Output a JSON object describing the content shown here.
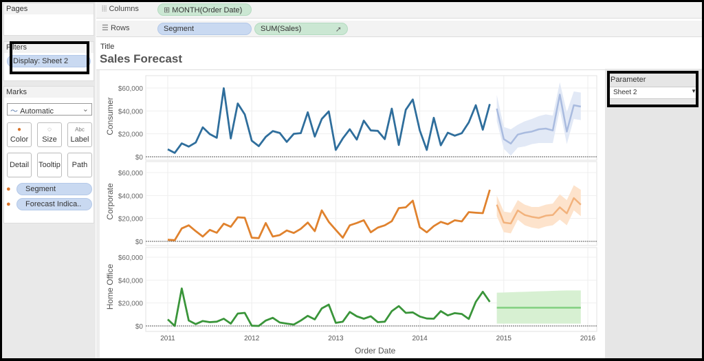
{
  "left_panel": {
    "pages_label": "Pages",
    "filters_label": "Filters",
    "filter_pill": "Display: Sheet 2",
    "marks_label": "Marks",
    "mark_type": "Automatic",
    "mark_buttons": [
      {
        "label": "Color",
        "icon": "color-icon",
        "glyph": "●"
      },
      {
        "label": "Size",
        "icon": "size-icon",
        "glyph": "◌"
      },
      {
        "label": "Label",
        "icon": "label-icon",
        "glyph": "Abc"
      },
      {
        "label": "Detail",
        "icon": "detail-icon",
        "glyph": ""
      },
      {
        "label": "Tooltip",
        "icon": "tooltip-icon",
        "glyph": ""
      },
      {
        "label": "Path",
        "icon": "path-icon",
        "glyph": ""
      }
    ],
    "mark_pills": [
      "Segment",
      "Forecast Indica.."
    ]
  },
  "shelves": {
    "columns_label": "Columns",
    "columns_pill": "MONTH(Order Date)",
    "rows_label": "Rows",
    "rows_pills": [
      "Segment",
      "SUM(Sales)"
    ]
  },
  "title": {
    "label": "Title",
    "text": "Sales Forecast"
  },
  "parameter": {
    "label": "Parameter",
    "value": "Sheet 2"
  },
  "chart_data": {
    "type": "line",
    "xlabel": "Order Date",
    "x_ticks": [
      "2011",
      "2012",
      "2013",
      "2014",
      "2015",
      "2016"
    ],
    "y_ticks": [
      "$0",
      "$20,000",
      "$40,000",
      "$60,000"
    ],
    "ylim": [
      0,
      65000
    ],
    "grid": true,
    "x": [
      "2011-01",
      "2011-02",
      "2011-03",
      "2011-04",
      "2011-05",
      "2011-06",
      "2011-07",
      "2011-08",
      "2011-09",
      "2011-10",
      "2011-11",
      "2011-12",
      "2012-01",
      "2012-02",
      "2012-03",
      "2012-04",
      "2012-05",
      "2012-06",
      "2012-07",
      "2012-08",
      "2012-09",
      "2012-10",
      "2012-11",
      "2012-12",
      "2013-01",
      "2013-02",
      "2013-03",
      "2013-04",
      "2013-05",
      "2013-06",
      "2013-07",
      "2013-08",
      "2013-09",
      "2013-10",
      "2013-11",
      "2013-12",
      "2014-01",
      "2014-02",
      "2014-03",
      "2014-04",
      "2014-05",
      "2014-06",
      "2014-07",
      "2014-08",
      "2014-09",
      "2014-10",
      "2014-11"
    ],
    "forecast_x": [
      "2014-12",
      "2015-01",
      "2015-02",
      "2015-03",
      "2015-04",
      "2015-05",
      "2015-06",
      "2015-07",
      "2015-08",
      "2015-09",
      "2015-10",
      "2015-11",
      "2015-12"
    ],
    "panels": [
      {
        "name": "Consumer",
        "color": "#2f6e9c",
        "forecast_color": "#a9bbdf",
        "band_color": "#e2e9f6",
        "actual": [
          6500,
          3400,
          11700,
          8900,
          12500,
          25700,
          19800,
          16600,
          59800,
          16000,
          46500,
          37000,
          14000,
          9300,
          17400,
          22400,
          20800,
          13000,
          20000,
          20600,
          38800,
          17600,
          33000,
          39600,
          6000,
          16000,
          24000,
          15000,
          31500,
          23000,
          22600,
          15400,
          42000,
          10300,
          41000,
          50000,
          23000,
          6000,
          34000,
          10000,
          21000,
          18400,
          20600,
          30000,
          45000,
          23600,
          46000
        ],
        "forecast": [
          42000,
          15400,
          11500,
          19400,
          21000,
          22000,
          24000,
          24600,
          23000,
          54300,
          22000,
          45000,
          43800
        ],
        "upper": [
          54000,
          26000,
          24000,
          28000,
          31000,
          33000,
          35500,
          37000,
          36000,
          65000,
          39000,
          57000,
          56000
        ],
        "lower": [
          31000,
          7000,
          1000,
          8000,
          9000,
          11000,
          12000,
          12000,
          12000,
          41000,
          11000,
          33000,
          32000
        ]
      },
      {
        "name": "Corporate",
        "color": "#e0822e",
        "forecast_color": "#f2b27c",
        "band_color": "#fde3cc",
        "actual": [
          1400,
          1000,
          11300,
          14000,
          8900,
          4200,
          10000,
          7500,
          15400,
          12700,
          21000,
          20600,
          3200,
          2800,
          16000,
          4200,
          5500,
          9500,
          7300,
          10900,
          16400,
          8900,
          27000,
          17000,
          10000,
          3200,
          14000,
          16000,
          18400,
          7900,
          12000,
          14000,
          17600,
          29000,
          29700,
          35500,
          12300,
          7900,
          13300,
          17000,
          15000,
          18400,
          17400,
          25500,
          25000,
          24600,
          45000
        ],
        "forecast": [
          32000,
          16400,
          15600,
          27000,
          23000,
          21400,
          20400,
          22400,
          23000,
          29700,
          24400,
          37800,
          32000
        ],
        "upper": [
          40000,
          26000,
          25000,
          36000,
          32000,
          30000,
          30000,
          32000,
          33000,
          41000,
          36000,
          49000,
          45000
        ],
        "lower": [
          22000,
          8000,
          7000,
          19000,
          14000,
          12000,
          11000,
          13000,
          14000,
          19000,
          14000,
          27000,
          22000
        ]
      },
      {
        "name": "Home Office",
        "color": "#3a953a",
        "forecast_color": "#80cf7f",
        "band_color": "#d7f0d2",
        "actual": [
          5700,
          0,
          32700,
          4700,
          1600,
          4300,
          3300,
          3700,
          6300,
          2000,
          10800,
          11400,
          200,
          0,
          4700,
          7100,
          3000,
          2000,
          1200,
          4700,
          8800,
          5700,
          15300,
          18600,
          2700,
          3700,
          12200,
          8400,
          6300,
          8400,
          3300,
          3700,
          12900,
          17300,
          11400,
          11800,
          8200,
          6500,
          6300,
          12900,
          9200,
          11200,
          10400,
          6100,
          21000,
          29800,
          21000
        ],
        "forecast": [
          15900,
          15900,
          15900,
          15900,
          15900,
          15900,
          15900,
          15900,
          15900,
          15900,
          15900,
          15900,
          15900
        ],
        "upper": [
          29000,
          29200,
          29400,
          29600,
          29800,
          30000,
          30200,
          30400,
          30600,
          30800,
          31000,
          31000,
          31000
        ],
        "lower": [
          2000,
          2000,
          2000,
          2000,
          2000,
          2000,
          2000,
          2000,
          2000,
          2000,
          2000,
          2000,
          2000
        ]
      }
    ]
  }
}
